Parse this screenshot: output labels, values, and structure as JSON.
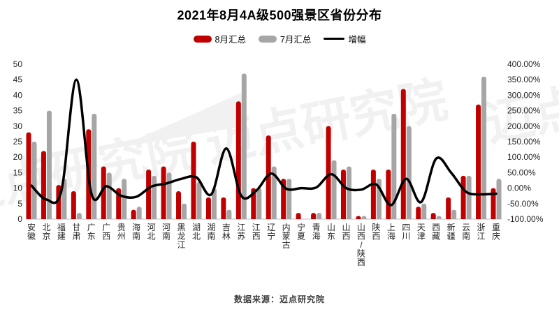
{
  "title": "2021年8月4A级500强景区省份分布",
  "legend": {
    "august": {
      "label": "8月汇总",
      "color": "#C00000"
    },
    "july": {
      "label": "7月汇总",
      "color": "#A6A6A6"
    },
    "growth": {
      "label": "增幅",
      "color": "#000000"
    }
  },
  "footer": {
    "source": "数据来源：迈点研究院"
  },
  "watermark": {
    "text": "迈点研究院"
  },
  "chart_data": {
    "type": "bar",
    "subtype": "grouped-bars-with-line",
    "title": "2021年8月4A级500强景区省份分布",
    "categories": [
      "安徽",
      "北京",
      "福建",
      "甘肃",
      "广东",
      "广西",
      "贵州",
      "海南",
      "河北",
      "河南",
      "黑龙江",
      "湖北",
      "湖南",
      "吉林",
      "江苏",
      "江西",
      "辽宁",
      "内蒙古",
      "宁夏",
      "青海",
      "山东",
      "山西",
      "山西/陕西",
      "陕西",
      "上海",
      "四川",
      "天津",
      "西藏",
      "新疆",
      "云南",
      "浙江",
      "重庆"
    ],
    "series": [
      {
        "name": "8月汇总",
        "type": "bar",
        "color": "#C00000",
        "axis": "left",
        "values": [
          28,
          22,
          11,
          9,
          29,
          17,
          10,
          3,
          16,
          17,
          9,
          25,
          7,
          7,
          38,
          10,
          27,
          13,
          2,
          2,
          30,
          16,
          1,
          16,
          16,
          42,
          4,
          2,
          7,
          14,
          37,
          10
        ]
      },
      {
        "name": "7月汇总",
        "type": "bar",
        "color": "#A6A6A6",
        "axis": "left",
        "values": [
          25,
          35,
          13,
          2,
          34,
          15,
          13,
          4,
          14,
          15,
          5,
          12,
          10,
          3,
          47,
          10,
          17,
          13,
          0,
          2,
          19,
          17,
          1,
          13,
          34,
          30,
          5,
          1,
          3,
          14,
          46,
          13
        ]
      },
      {
        "name": "增幅",
        "type": "line",
        "color": "#000000",
        "axis": "right",
        "unit": "%",
        "values": [
          8,
          -37,
          -8,
          350,
          -18,
          6,
          -25,
          -28,
          5,
          15,
          30,
          35,
          -20,
          128,
          -25,
          -8,
          47,
          -2,
          0,
          2,
          45,
          0,
          -5,
          12,
          -55,
          30,
          -45,
          95,
          50,
          -12,
          -20,
          -18
        ]
      }
    ],
    "left_axis": {
      "min": 0,
      "max": 50,
      "step": 5,
      "ticks": [
        50,
        45,
        40,
        35,
        30,
        25,
        20,
        15,
        10,
        5,
        0
      ]
    },
    "right_axis": {
      "min": -100,
      "max": 400,
      "step": 50,
      "tick_labels": [
        "400.00%",
        "350.00%",
        "300.00%",
        "250.00%",
        "200.00%",
        "150.00%",
        "100.00%",
        "50.00%",
        "0.00%",
        "-50.00%",
        "-100.00%"
      ]
    },
    "grid": false,
    "legend_position": "top",
    "smooth_line": true
  }
}
